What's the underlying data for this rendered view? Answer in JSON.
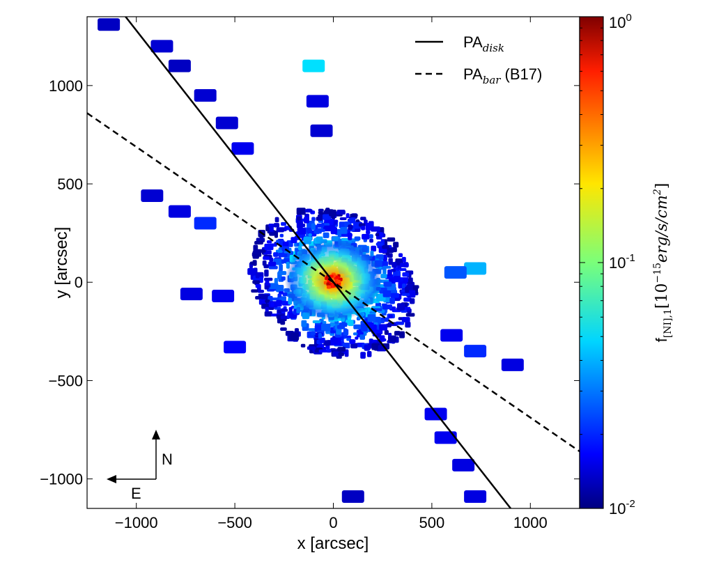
{
  "chart_data": {
    "type": "scatter",
    "xlabel": "x [arcsec]",
    "ylabel": "y [arcsec]",
    "xlim": [
      -1250,
      1250
    ],
    "ylim": [
      -1150,
      1350
    ],
    "xticks": [
      -1000,
      -500,
      0,
      500,
      1000
    ],
    "yticks": [
      -1000,
      -500,
      0,
      500,
      1000
    ],
    "xtick_labels": [
      "−1000",
      "−500",
      "0",
      "500",
      "1000"
    ],
    "ytick_labels": [
      "−1000",
      "−500",
      "0",
      "500",
      "1000"
    ],
    "colorbar": {
      "label_main": "f",
      "label_sub": "[NI],1",
      "label_rest": "[10",
      "label_exp": "−15",
      "label_unit": "erg/s/cm",
      "label_unit_exp": "2",
      "label_close": "]",
      "scale": "log",
      "vmin": 0.01,
      "vmax": 1,
      "colormap": "jet",
      "ticks": [
        {
          "value": 1,
          "base": "10",
          "exp": "0"
        },
        {
          "value": 0.1,
          "base": "10",
          "exp": "-1"
        },
        {
          "value": 0.01,
          "base": "10",
          "exp": "-2"
        }
      ]
    },
    "lines": [
      {
        "name": "PA_disk",
        "style": "solid",
        "x": [
          -1250,
          900
        ],
        "y": [
          1600,
          -1150
        ]
      },
      {
        "name": "PA_bar (B17)",
        "style": "dashed",
        "x": [
          -1250,
          1250
        ],
        "y": [
          860,
          -860
        ]
      }
    ],
    "legend": {
      "placement": "top-right",
      "entries": [
        {
          "main": "PA",
          "sub": "disk",
          "rest": ""
        },
        {
          "main": "PA",
          "sub": "bar",
          "rest": " (B17)"
        }
      ]
    },
    "clusters": [
      {
        "x": -1140,
        "y": 1310,
        "value": 0.012
      },
      {
        "x": -870,
        "y": 1200,
        "value": 0.013
      },
      {
        "x": -780,
        "y": 1100,
        "value": 0.012
      },
      {
        "x": -650,
        "y": 950,
        "value": 0.013
      },
      {
        "x": -540,
        "y": 810,
        "value": 0.013
      },
      {
        "x": -460,
        "y": 680,
        "value": 0.015
      },
      {
        "x": -920,
        "y": 440,
        "value": 0.013
      },
      {
        "x": -780,
        "y": 360,
        "value": 0.014
      },
      {
        "x": -650,
        "y": 300,
        "value": 0.02
      },
      {
        "x": -720,
        "y": -60,
        "value": 0.014
      },
      {
        "x": -560,
        "y": -70,
        "value": 0.015
      },
      {
        "x": -500,
        "y": -330,
        "value": 0.016
      },
      {
        "x": -100,
        "y": 1100,
        "value": 0.05
      },
      {
        "x": -80,
        "y": 920,
        "value": 0.014
      },
      {
        "x": -60,
        "y": 770,
        "value": 0.013
      },
      {
        "x": 520,
        "y": -670,
        "value": 0.015
      },
      {
        "x": 570,
        "y": -790,
        "value": 0.015
      },
      {
        "x": 720,
        "y": -1090,
        "value": 0.014
      },
      {
        "x": 100,
        "y": -1090,
        "value": 0.012
      },
      {
        "x": 720,
        "y": -350,
        "value": 0.02
      },
      {
        "x": 910,
        "y": -420,
        "value": 0.014
      },
      {
        "x": 600,
        "y": -270,
        "value": 0.015
      },
      {
        "x": 720,
        "y": 70,
        "value": 0.04
      },
      {
        "x": 620,
        "y": 50,
        "value": 0.025
      },
      {
        "x": 660,
        "y": -930,
        "value": 0.014
      }
    ]
  },
  "compass": {
    "north": "N",
    "east": "E"
  }
}
